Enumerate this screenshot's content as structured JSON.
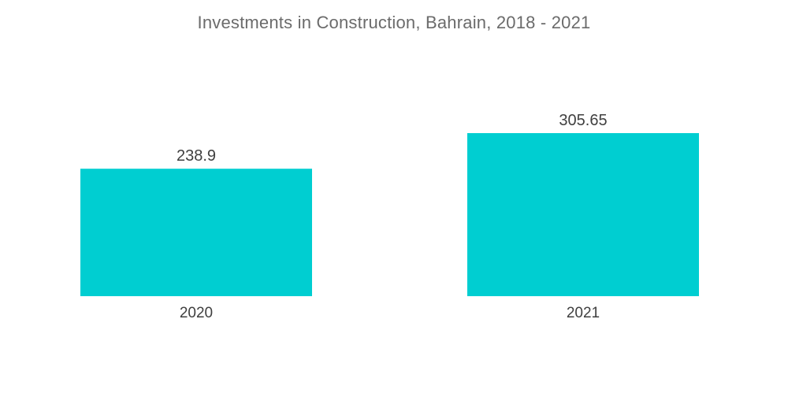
{
  "chart_data": {
    "type": "bar",
    "title": "Investments in Construction, Bahrain, 2018 - 2021",
    "categories": [
      "2020",
      "2021"
    ],
    "values": [
      238.9,
      305.65
    ],
    "value_labels": [
      "238.9",
      "305.65"
    ],
    "xlabel": "",
    "ylabel": "",
    "ylim": [
      0,
      305.65
    ],
    "grid": false,
    "legend": "none",
    "bar_color": "#00CED1"
  }
}
